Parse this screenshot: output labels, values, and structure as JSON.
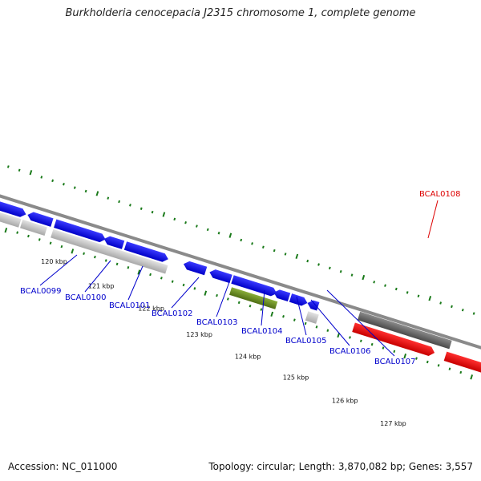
{
  "title": "Burkholderia cenocepacia J2315 chromosome 1, complete genome",
  "footer": {
    "accession": "Accession: NC_011000",
    "stats": "Topology: circular; Length: 3,870,082 bp; Genes: 3,557"
  },
  "colors": {
    "forward_cds": "#1010ee",
    "reverse_cds": "#1010ee",
    "rna_gene": "#6b8e23",
    "highlight_gene": "#ee0000",
    "backbone": "#888888",
    "gc_ticks": "#1a7a1a",
    "gene_label": "#0000cc",
    "highlight_label": "#dd0000"
  },
  "scale_labels": [
    "120 kbp",
    "121 kbp",
    "122 kbp",
    "123 kbp",
    "124 kbp",
    "125 kbp",
    "126 kbp",
    "127 kbp"
  ],
  "gene_labels": [
    {
      "id": "BCAL0099",
      "highlight": false
    },
    {
      "id": "BCAL0100",
      "highlight": false
    },
    {
      "id": "BCAL0101",
      "highlight": false
    },
    {
      "id": "BCAL0102",
      "highlight": false
    },
    {
      "id": "BCAL0103",
      "highlight": false
    },
    {
      "id": "BCAL0104",
      "highlight": false
    },
    {
      "id": "BCAL0105",
      "highlight": false
    },
    {
      "id": "BCAL0106",
      "highlight": false
    },
    {
      "id": "BCAL0107",
      "highlight": false
    },
    {
      "id": "BCAL0108",
      "highlight": true
    }
  ]
}
